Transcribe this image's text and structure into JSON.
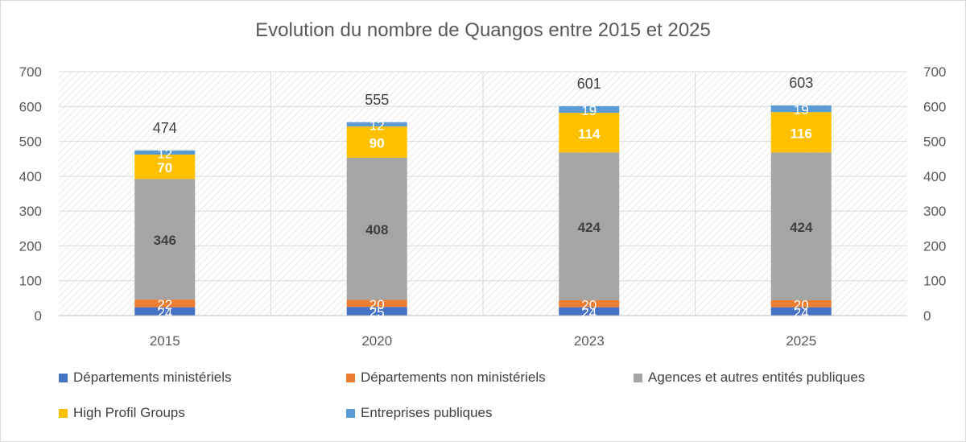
{
  "chart_data": {
    "type": "bar",
    "stacked": true,
    "title": "Evolution du nombre de Quangos entre 2015 et 2025",
    "categories": [
      "2015",
      "2020",
      "2023",
      "2025"
    ],
    "ylim": [
      0,
      700
    ],
    "yticks": [
      "0",
      "100",
      "200",
      "300",
      "400",
      "500",
      "600",
      "700"
    ],
    "grid": true,
    "legend_position": "bottom",
    "series": [
      {
        "name": "Départements ministériels",
        "values": [
          24,
          25,
          24,
          24
        ],
        "color": "#4472c4",
        "label_color": "#ffffff",
        "bold": false
      },
      {
        "name": "Départements non ministériels",
        "values": [
          22,
          20,
          20,
          20
        ],
        "color": "#ed7d31",
        "label_color": "#ffffff",
        "bold": false
      },
      {
        "name": "Agences et autres entités publiques",
        "values": [
          346,
          408,
          424,
          424
        ],
        "color": "#a5a5a5",
        "label_color": "#404040",
        "bold": true
      },
      {
        "name": "High Profil Groups",
        "values": [
          70,
          90,
          114,
          116
        ],
        "color": "#ffc000",
        "label_color": "#ffffff",
        "bold": true
      },
      {
        "name": "Entreprises publiques",
        "values": [
          12,
          12,
          19,
          19
        ],
        "color": "#5b9bd5",
        "label_color": "#ffffff",
        "bold": false
      }
    ],
    "totals": [
      474,
      555,
      601,
      603
    ]
  }
}
